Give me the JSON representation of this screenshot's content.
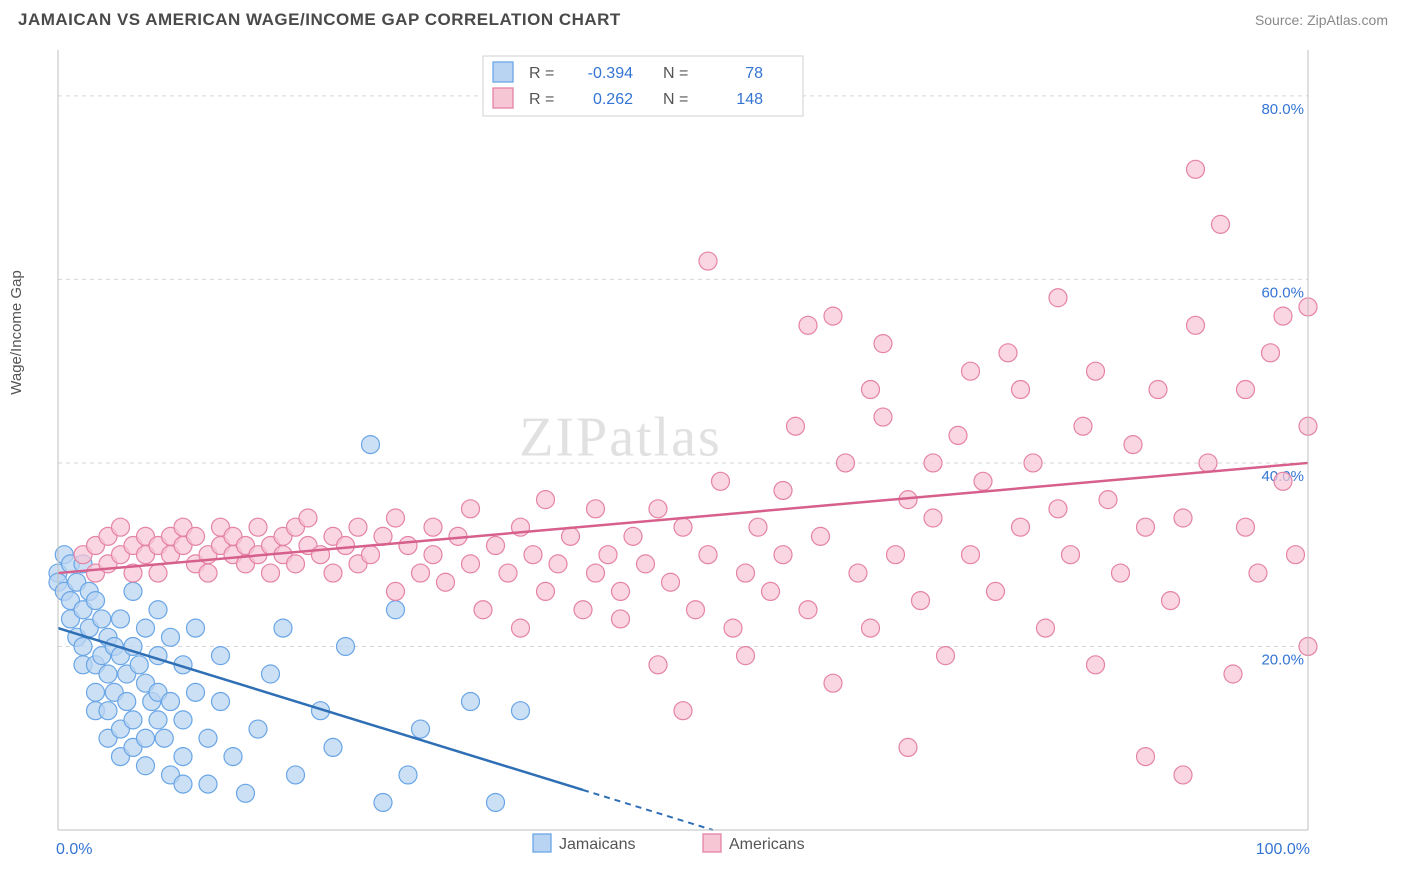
{
  "header": {
    "title": "JAMAICAN VS AMERICAN WAGE/INCOME GAP CORRELATION CHART",
    "source": "Source: ZipAtlas.com"
  },
  "chart": {
    "type": "scatter",
    "ylabel": "Wage/Income Gap",
    "watermark": "ZIPatlas",
    "background_color": "#ffffff",
    "grid_color": "#d6d6d6",
    "axis_color": "#bfbfbf",
    "tick_label_color": "#3474d4",
    "x": {
      "min": 0,
      "max": 100,
      "ticks": [
        0,
        100
      ],
      "tick_labels": [
        "0.0%",
        "100.0%"
      ]
    },
    "y": {
      "min": 0,
      "max": 85,
      "ticks": [
        20,
        40,
        60,
        80
      ],
      "tick_labels": [
        "20.0%",
        "40.0%",
        "60.0%",
        "80.0%"
      ]
    },
    "stats_legend": {
      "rows": [
        {
          "swatch_fill": "#b9d4f2",
          "swatch_stroke": "#6aa6e6",
          "r_label": "R =",
          "r_value": "-0.394",
          "n_label": "N =",
          "n_value": "78"
        },
        {
          "swatch_fill": "#f6c6d5",
          "swatch_stroke": "#e583a6",
          "r_label": "R =",
          "r_value": "0.262",
          "n_label": "N =",
          "n_value": "148"
        }
      ]
    },
    "bottom_legend": {
      "items": [
        {
          "swatch_fill": "#b9d4f2",
          "swatch_stroke": "#6aa6e6",
          "label": "Jamaicans"
        },
        {
          "swatch_fill": "#f6c6d5",
          "swatch_stroke": "#e583a6",
          "label": "Americans"
        }
      ]
    },
    "series": [
      {
        "name": "Jamaicans",
        "marker_fill": "#b9d4f2",
        "marker_stroke": "#6aa6e6",
        "marker_opacity": 0.75,
        "marker_radius": 9,
        "trend": {
          "color": "#2f6fb5",
          "y_at_x0": 22,
          "y_at_x100": -20,
          "solid_until_x": 42
        },
        "points": [
          [
            0,
            28
          ],
          [
            0,
            27
          ],
          [
            0.5,
            26
          ],
          [
            0.5,
            30
          ],
          [
            1,
            25
          ],
          [
            1,
            29
          ],
          [
            1,
            23
          ],
          [
            1.5,
            27
          ],
          [
            1.5,
            21
          ],
          [
            2,
            29
          ],
          [
            2,
            20
          ],
          [
            2,
            24
          ],
          [
            2,
            18
          ],
          [
            2.5,
            22
          ],
          [
            2.5,
            26
          ],
          [
            3,
            25
          ],
          [
            3,
            18
          ],
          [
            3,
            15
          ],
          [
            3,
            13
          ],
          [
            3.5,
            19
          ],
          [
            3.5,
            23
          ],
          [
            4,
            21
          ],
          [
            4,
            17
          ],
          [
            4,
            13
          ],
          [
            4,
            10
          ],
          [
            4.5,
            20
          ],
          [
            4.5,
            15
          ],
          [
            5,
            23
          ],
          [
            5,
            11
          ],
          [
            5,
            19
          ],
          [
            5,
            8
          ],
          [
            5.5,
            17
          ],
          [
            5.5,
            14
          ],
          [
            6,
            26
          ],
          [
            6,
            12
          ],
          [
            6,
            20
          ],
          [
            6,
            9
          ],
          [
            6.5,
            18
          ],
          [
            7,
            22
          ],
          [
            7,
            16
          ],
          [
            7,
            10
          ],
          [
            7,
            7
          ],
          [
            7.5,
            14
          ],
          [
            8,
            24
          ],
          [
            8,
            19
          ],
          [
            8,
            12
          ],
          [
            8,
            15
          ],
          [
            8.5,
            10
          ],
          [
            9,
            21
          ],
          [
            9,
            6
          ],
          [
            9,
            14
          ],
          [
            10,
            18
          ],
          [
            10,
            12
          ],
          [
            10,
            5
          ],
          [
            10,
            8
          ],
          [
            11,
            15
          ],
          [
            11,
            22
          ],
          [
            12,
            10
          ],
          [
            12,
            5
          ],
          [
            13,
            14
          ],
          [
            13,
            19
          ],
          [
            14,
            8
          ],
          [
            15,
            4
          ],
          [
            16,
            11
          ],
          [
            17,
            17
          ],
          [
            18,
            22
          ],
          [
            19,
            6
          ],
          [
            21,
            13
          ],
          [
            22,
            9
          ],
          [
            23,
            20
          ],
          [
            25,
            42
          ],
          [
            26,
            3
          ],
          [
            27,
            24
          ],
          [
            28,
            6
          ],
          [
            29,
            11
          ],
          [
            33,
            14
          ],
          [
            35,
            3
          ],
          [
            37,
            13
          ]
        ]
      },
      {
        "name": "Americans",
        "marker_fill": "#f6c6d5",
        "marker_stroke": "#e583a6",
        "marker_opacity": 0.72,
        "marker_radius": 9,
        "trend": {
          "color": "#d6608b",
          "y_at_x0": 28,
          "y_at_x100": 40,
          "solid_until_x": 100
        },
        "points": [
          [
            2,
            30
          ],
          [
            3,
            31
          ],
          [
            3,
            28
          ],
          [
            4,
            32
          ],
          [
            4,
            29
          ],
          [
            5,
            30
          ],
          [
            5,
            33
          ],
          [
            6,
            31
          ],
          [
            6,
            28
          ],
          [
            7,
            32
          ],
          [
            7,
            30
          ],
          [
            8,
            31
          ],
          [
            8,
            28
          ],
          [
            9,
            32
          ],
          [
            9,
            30
          ],
          [
            10,
            31
          ],
          [
            10,
            33
          ],
          [
            11,
            29
          ],
          [
            11,
            32
          ],
          [
            12,
            30
          ],
          [
            12,
            28
          ],
          [
            13,
            31
          ],
          [
            13,
            33
          ],
          [
            14,
            30
          ],
          [
            14,
            32
          ],
          [
            15,
            29
          ],
          [
            15,
            31
          ],
          [
            16,
            33
          ],
          [
            16,
            30
          ],
          [
            17,
            31
          ],
          [
            17,
            28
          ],
          [
            18,
            32
          ],
          [
            18,
            30
          ],
          [
            19,
            33
          ],
          [
            19,
            29
          ],
          [
            20,
            31
          ],
          [
            20,
            34
          ],
          [
            21,
            30
          ],
          [
            22,
            32
          ],
          [
            22,
            28
          ],
          [
            23,
            31
          ],
          [
            24,
            33
          ],
          [
            24,
            29
          ],
          [
            25,
            30
          ],
          [
            26,
            32
          ],
          [
            27,
            26
          ],
          [
            27,
            34
          ],
          [
            28,
            31
          ],
          [
            29,
            28
          ],
          [
            30,
            33
          ],
          [
            30,
            30
          ],
          [
            31,
            27
          ],
          [
            32,
            32
          ],
          [
            33,
            35
          ],
          [
            33,
            29
          ],
          [
            34,
            24
          ],
          [
            35,
            31
          ],
          [
            36,
            28
          ],
          [
            37,
            22
          ],
          [
            37,
            33
          ],
          [
            38,
            30
          ],
          [
            39,
            36
          ],
          [
            39,
            26
          ],
          [
            40,
            29
          ],
          [
            41,
            32
          ],
          [
            42,
            24
          ],
          [
            43,
            35
          ],
          [
            43,
            28
          ],
          [
            44,
            30
          ],
          [
            45,
            23
          ],
          [
            45,
            26
          ],
          [
            46,
            32
          ],
          [
            47,
            29
          ],
          [
            48,
            18
          ],
          [
            48,
            35
          ],
          [
            49,
            27
          ],
          [
            50,
            33
          ],
          [
            50,
            13
          ],
          [
            51,
            24
          ],
          [
            52,
            30
          ],
          [
            52,
            62
          ],
          [
            53,
            38
          ],
          [
            54,
            22
          ],
          [
            55,
            28
          ],
          [
            55,
            19
          ],
          [
            56,
            33
          ],
          [
            57,
            26
          ],
          [
            58,
            37
          ],
          [
            58,
            30
          ],
          [
            59,
            44
          ],
          [
            60,
            24
          ],
          [
            60,
            55
          ],
          [
            61,
            32
          ],
          [
            62,
            16
          ],
          [
            62,
            56
          ],
          [
            63,
            40
          ],
          [
            64,
            28
          ],
          [
            65,
            48
          ],
          [
            65,
            22
          ],
          [
            66,
            45
          ],
          [
            66,
            53
          ],
          [
            67,
            30
          ],
          [
            68,
            36
          ],
          [
            68,
            9
          ],
          [
            69,
            25
          ],
          [
            70,
            40
          ],
          [
            70,
            34
          ],
          [
            71,
            19
          ],
          [
            72,
            43
          ],
          [
            73,
            30
          ],
          [
            73,
            50
          ],
          [
            74,
            38
          ],
          [
            75,
            26
          ],
          [
            76,
            52
          ],
          [
            77,
            33
          ],
          [
            77,
            48
          ],
          [
            78,
            40
          ],
          [
            79,
            22
          ],
          [
            80,
            58
          ],
          [
            80,
            35
          ],
          [
            81,
            30
          ],
          [
            82,
            44
          ],
          [
            83,
            18
          ],
          [
            83,
            50
          ],
          [
            84,
            36
          ],
          [
            85,
            28
          ],
          [
            86,
            42
          ],
          [
            87,
            8
          ],
          [
            87,
            33
          ],
          [
            88,
            48
          ],
          [
            89,
            25
          ],
          [
            90,
            34
          ],
          [
            90,
            6
          ],
          [
            91,
            72
          ],
          [
            91,
            55
          ],
          [
            92,
            40
          ],
          [
            93,
            66
          ],
          [
            94,
            17
          ],
          [
            95,
            33
          ],
          [
            95,
            48
          ],
          [
            96,
            28
          ],
          [
            97,
            52
          ],
          [
            98,
            38
          ],
          [
            98,
            56
          ],
          [
            99,
            30
          ],
          [
            100,
            44
          ],
          [
            100,
            20
          ],
          [
            100,
            57
          ]
        ]
      }
    ]
  }
}
